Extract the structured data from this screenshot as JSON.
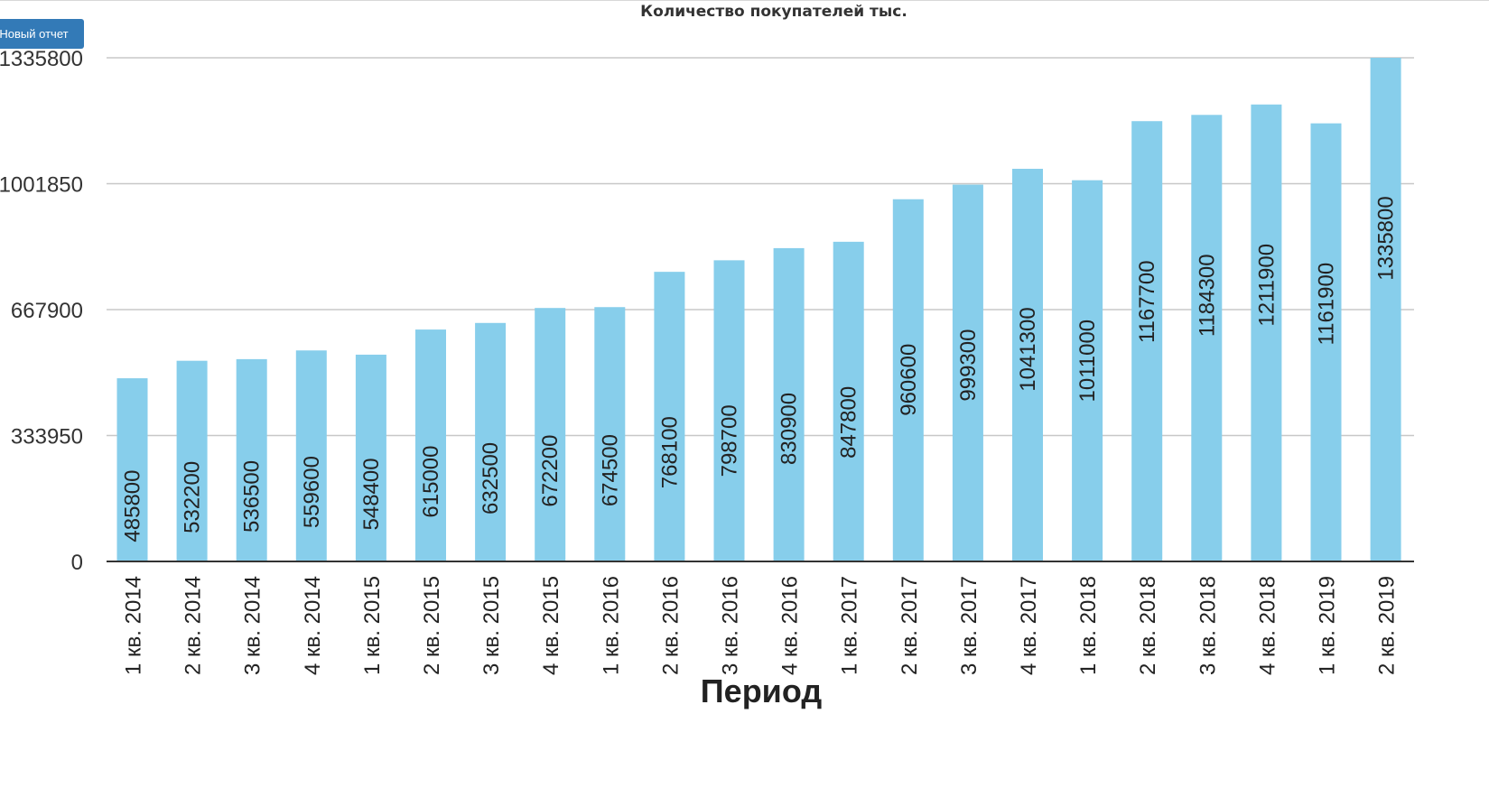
{
  "toolbar": {
    "report_button_label": "Новый отчет"
  },
  "colors": {
    "bar": "#87ceeb",
    "grid": "#c8c8c8",
    "axis": "#333333",
    "button": "#337ab7"
  },
  "chart_data": {
    "type": "bar",
    "title": "Количество покупателей тыс.",
    "xlabel": "Период",
    "ylabel": "",
    "ylim": [
      0,
      1335800
    ],
    "yticks": [
      0,
      333950,
      667900,
      1001850,
      1335800
    ],
    "grid": true,
    "data_labels": true,
    "categories": [
      "1 кв. 2014",
      "2 кв. 2014",
      "3 кв. 2014",
      "4 кв. 2014",
      "1 кв. 2015",
      "2 кв. 2015",
      "3 кв. 2015",
      "4 кв. 2015",
      "1 кв. 2016",
      "2 кв. 2016",
      "3 кв. 2016",
      "4 кв. 2016",
      "1 кв. 2017",
      "2 кв. 2017",
      "3 кв. 2017",
      "4 кв. 2017",
      "1 кв. 2018",
      "2 кв. 2018",
      "3 кв. 2018",
      "4 кв. 2018",
      "1 кв. 2019",
      "2 кв. 2019"
    ],
    "values": [
      485800,
      532200,
      536500,
      559600,
      548400,
      615000,
      632500,
      672200,
      674500,
      768100,
      798700,
      830900,
      847800,
      960600,
      999300,
      1041300,
      1011000,
      1167700,
      1184300,
      1211900,
      1161900,
      1335800
    ]
  }
}
